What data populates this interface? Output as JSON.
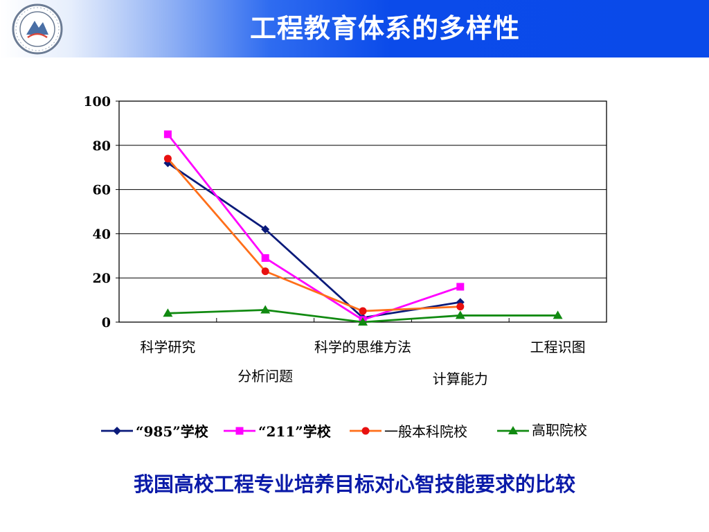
{
  "header": {
    "title": "工程教育体系的多样性",
    "logo_icon": "university-seal-icon",
    "bar_color": "#0a4ae9"
  },
  "caption": "我国高校工程专业培养目标对心智技能要求的比较",
  "chart_data": {
    "type": "line",
    "categories": [
      "科学研究",
      "分析问题",
      "科学的思维方法",
      "计算能力",
      "工程识图"
    ],
    "ylim": [
      0,
      100
    ],
    "yticks": [
      "0",
      "20",
      "40",
      "60",
      "80",
      "100"
    ],
    "grid": true,
    "legend_position": "bottom",
    "series": [
      {
        "name": "“985”学校",
        "color": "#0a1a7a",
        "marker": "diamond",
        "values": [
          72,
          42,
          2,
          9,
          null
        ]
      },
      {
        "name": "“211”学校",
        "color": "#ff00ff",
        "marker": "square",
        "values": [
          85,
          29,
          1,
          16,
          null
        ]
      },
      {
        "name": "一般本科院校",
        "color": "#ff6f1a",
        "marker": "circle",
        "values": [
          74,
          23,
          5,
          7,
          null
        ]
      },
      {
        "name": "高职院校",
        "color": "#118a11",
        "marker": "triangle",
        "values": [
          4,
          5.5,
          0,
          3,
          3
        ]
      }
    ]
  }
}
